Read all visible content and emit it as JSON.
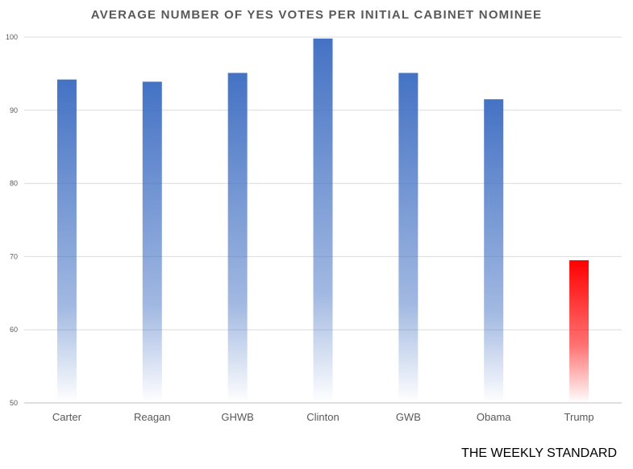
{
  "chart_data": {
    "type": "bar",
    "title": "AVERAGE NUMBER OF YES VOTES PER INITIAL CABINET NOMINEE",
    "xlabel": "",
    "ylabel": "",
    "categories": [
      "Carter",
      "Reagan",
      "GHWB",
      "Clinton",
      "GWB",
      "Obama",
      "Trump"
    ],
    "values": [
      94.2,
      93.9,
      95.1,
      99.8,
      95.1,
      91.5,
      69.5
    ],
    "ylim": [
      50,
      100
    ],
    "yticks": [
      50,
      60,
      70,
      80,
      90,
      100
    ],
    "grid": true,
    "legend": "none",
    "colors": {
      "default": "#4472c4",
      "highlight": "#ff0000",
      "highlight_category": "Trump"
    }
  },
  "source_label": "THE WEEKLY STANDARD"
}
